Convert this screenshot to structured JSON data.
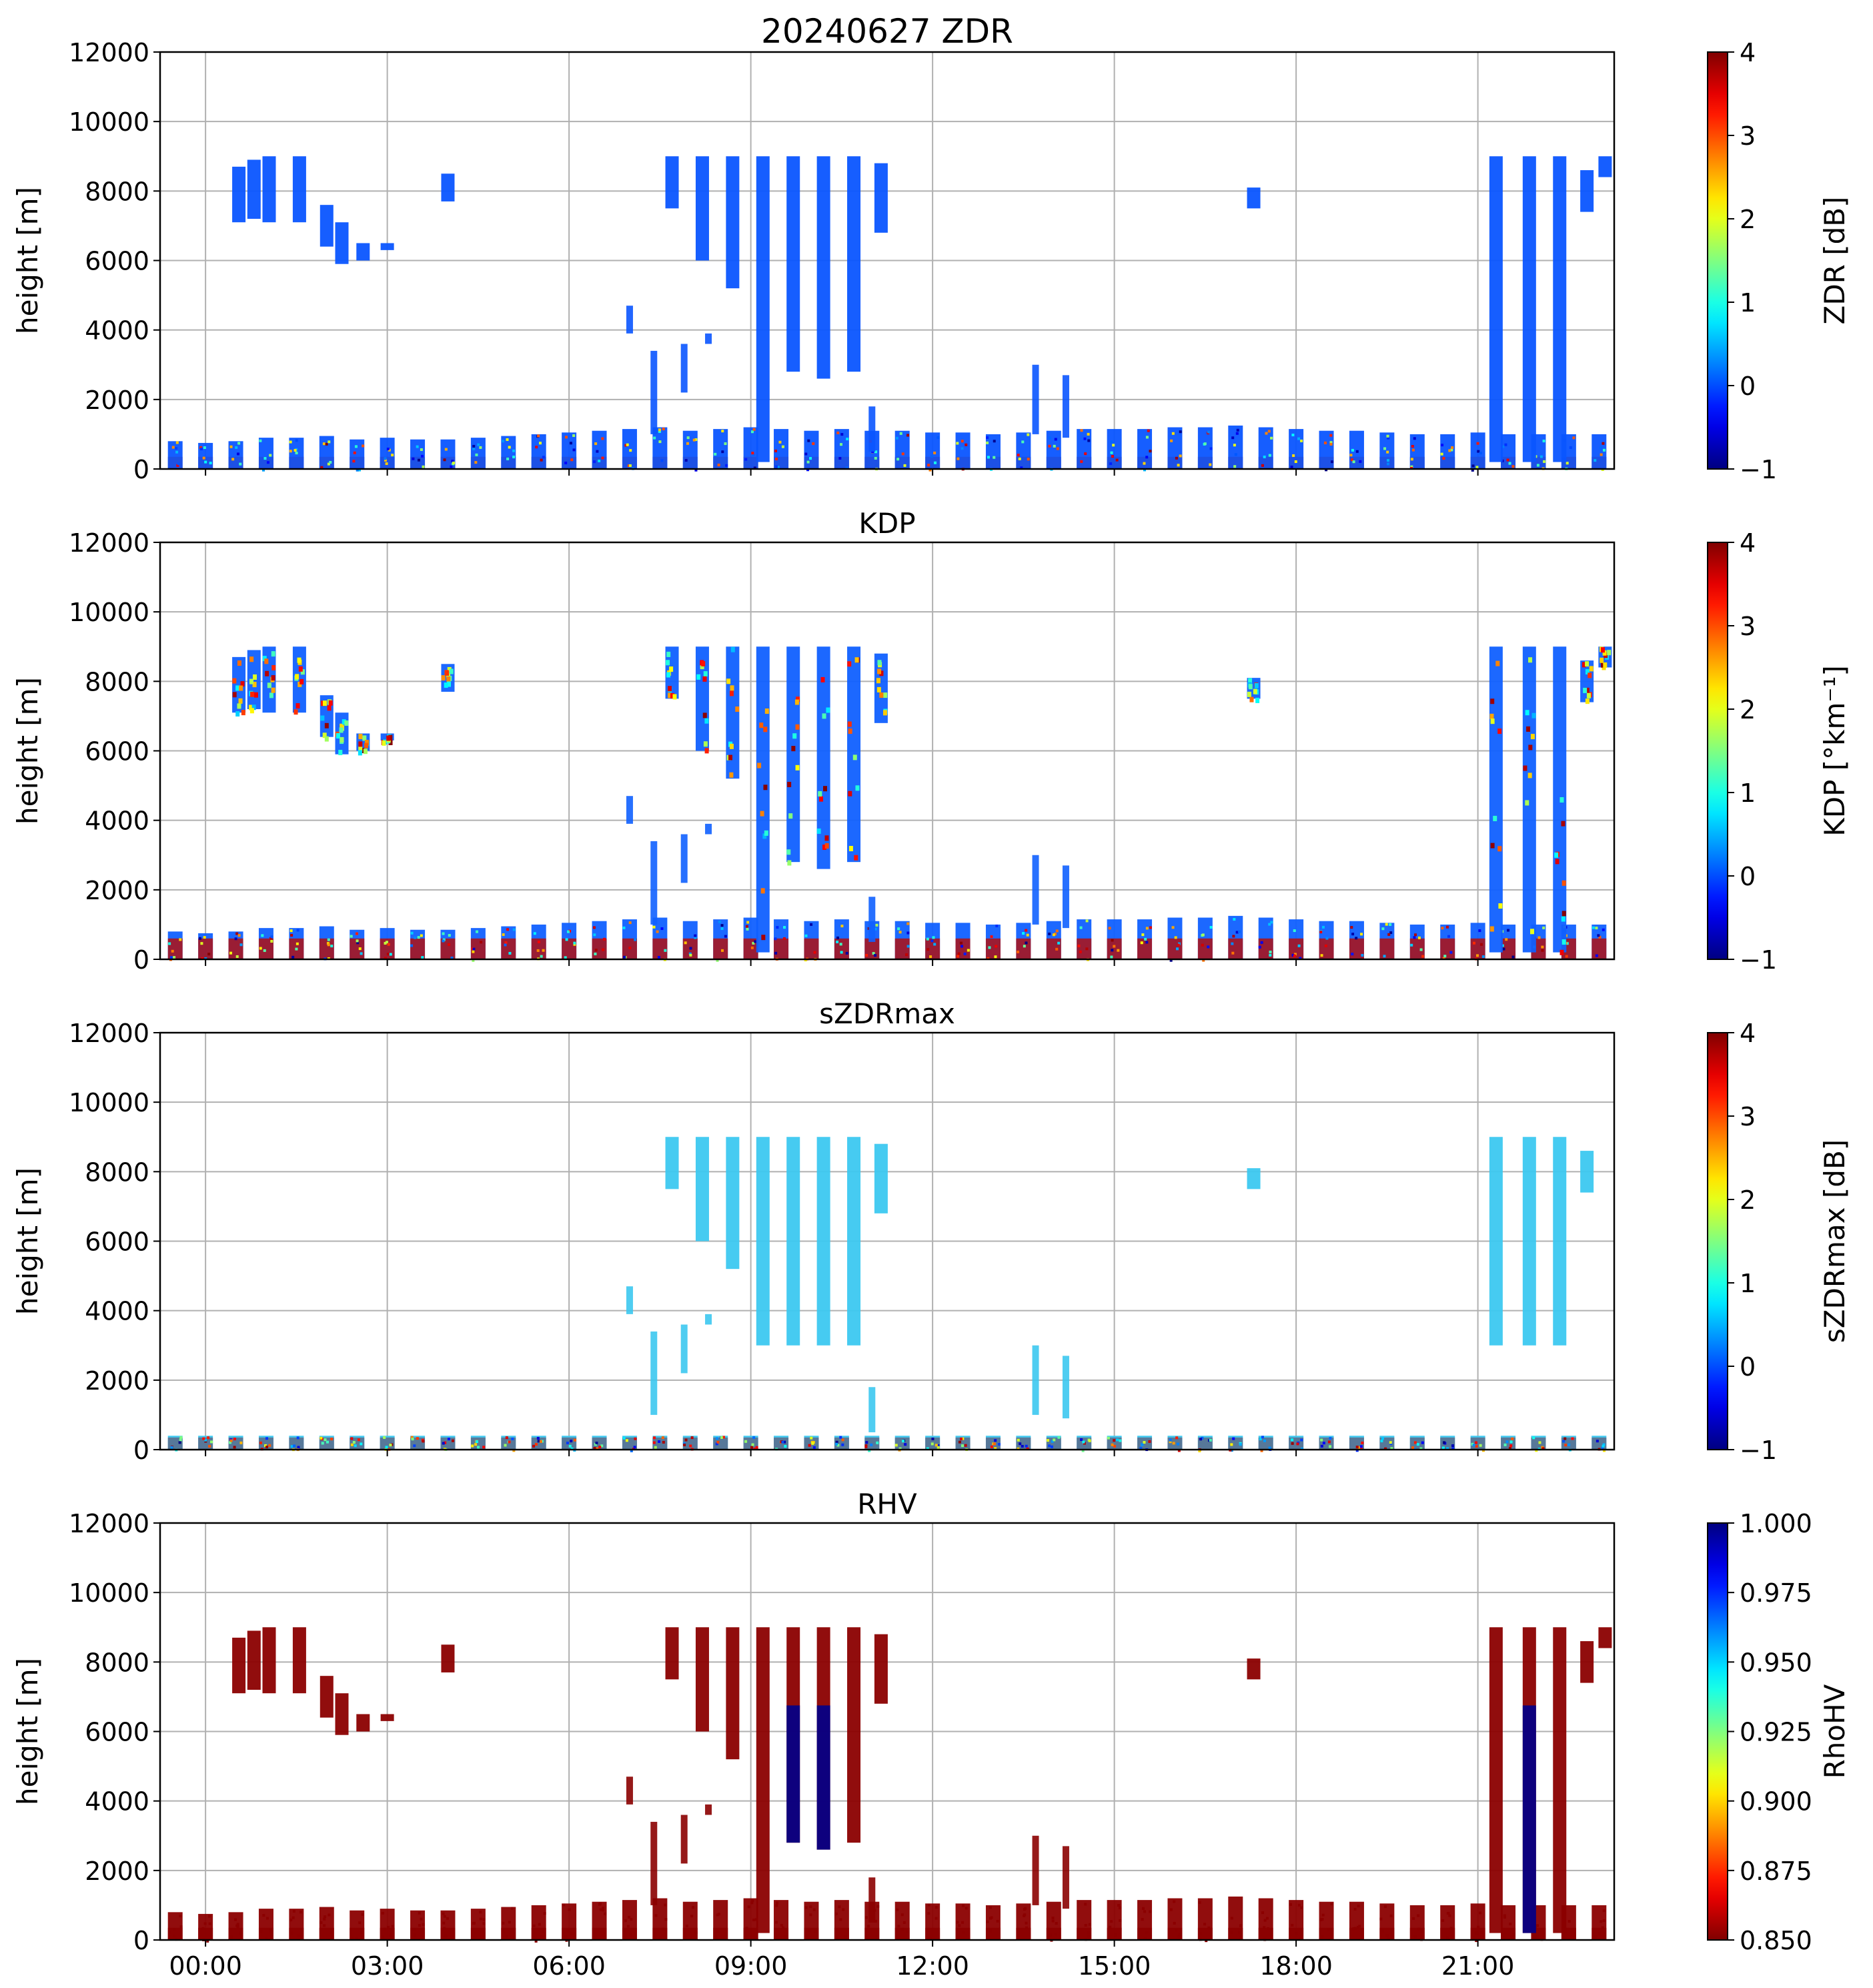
{
  "figure": {
    "title_main": "20240627 ZDR"
  },
  "x_ticks": [
    "00:00",
    "03:00",
    "06:00",
    "09:00",
    "12:00",
    "15:00",
    "18:00",
    "21:00"
  ],
  "chart_data": [
    {
      "type": "heatmap",
      "title": "20240627 ZDR",
      "ylabel": "height [m]",
      "ylim": [
        0,
        12000
      ],
      "yticks": [
        "0",
        "2000",
        "4000",
        "6000",
        "8000",
        "10000",
        "12000"
      ],
      "xlim_hours": [
        -0.75,
        23.25
      ],
      "grid": true,
      "colorbar": {
        "label": "ZDR [dB]",
        "range": [
          -1,
          4
        ],
        "ticks": [
          "−1",
          "0",
          "1",
          "2",
          "3",
          "4"
        ],
        "colormap": "jet",
        "reversed": false
      },
      "dominant_color": "#0a55ff",
      "low_level_color": "#1e4fe0"
    },
    {
      "type": "heatmap",
      "title": "KDP",
      "ylabel": "height [m]",
      "ylim": [
        0,
        12000
      ],
      "yticks": [
        "0",
        "2000",
        "4000",
        "6000",
        "8000",
        "10000",
        "12000"
      ],
      "xlim_hours": [
        -0.75,
        23.25
      ],
      "grid": true,
      "colorbar": {
        "label": "KDP [°km⁻¹]",
        "range": [
          -1,
          4
        ],
        "ticks": [
          "−1",
          "0",
          "1",
          "2",
          "3",
          "4"
        ],
        "colormap": "jet",
        "reversed": false
      },
      "dominant_color": "#1060ff",
      "low_level_color": "#b01010"
    },
    {
      "type": "heatmap",
      "title": "sZDRmax",
      "ylabel": "height [m]",
      "ylim": [
        0,
        12000
      ],
      "yticks": [
        "0",
        "2000",
        "4000",
        "6000",
        "8000",
        "10000",
        "12000"
      ],
      "xlim_hours": [
        -0.75,
        23.25
      ],
      "grid": true,
      "colorbar": {
        "label": "sZDRmax [dB]",
        "range": [
          -1,
          4
        ],
        "ticks": [
          "−1",
          "0",
          "1",
          "2",
          "3",
          "4"
        ],
        "colormap": "jet",
        "reversed": false
      },
      "dominant_color": "#3cc8f0",
      "low_level_color": "#5a6a8a"
    },
    {
      "type": "heatmap",
      "title": "RHV",
      "ylabel": "height [m]",
      "ylim": [
        0,
        12000
      ],
      "yticks": [
        "0",
        "2000",
        "4000",
        "6000",
        "8000",
        "10000",
        "12000"
      ],
      "xlim_hours": [
        -0.75,
        23.25
      ],
      "grid": true,
      "colorbar": {
        "label": "RhoHV",
        "range": [
          0.85,
          1.0
        ],
        "ticks": [
          "0.850",
          "0.875",
          "0.900",
          "0.925",
          "0.950",
          "0.975",
          "1.000"
        ],
        "colormap": "jet",
        "reversed": true
      },
      "dominant_color": "#8b0000",
      "low_level_color": "#8b0000"
    }
  ],
  "echo_data": {
    "description_units": "times in hours since 00:00, heights in m",
    "low_level_scans": [
      [
        -0.5,
        800
      ],
      [
        0,
        750
      ],
      [
        0.5,
        800
      ],
      [
        1,
        900
      ],
      [
        1.5,
        900
      ],
      [
        2,
        950
      ],
      [
        2.5,
        850
      ],
      [
        3,
        900
      ],
      [
        3.5,
        850
      ],
      [
        4,
        850
      ],
      [
        4.5,
        900
      ],
      [
        5,
        950
      ],
      [
        5.5,
        1000
      ],
      [
        6,
        1050
      ],
      [
        6.5,
        1100
      ],
      [
        7,
        1150
      ],
      [
        7.5,
        1200
      ],
      [
        8,
        1100
      ],
      [
        8.5,
        1150
      ],
      [
        9,
        1200
      ],
      [
        9.5,
        1150
      ],
      [
        10,
        1100
      ],
      [
        10.5,
        1150
      ],
      [
        11,
        1100
      ],
      [
        11.5,
        1100
      ],
      [
        12,
        1050
      ],
      [
        12.5,
        1050
      ],
      [
        13,
        1000
      ],
      [
        13.5,
        1050
      ],
      [
        14,
        1100
      ],
      [
        14.5,
        1150
      ],
      [
        15,
        1150
      ],
      [
        15.5,
        1150
      ],
      [
        16,
        1200
      ],
      [
        16.5,
        1200
      ],
      [
        17,
        1250
      ],
      [
        17.5,
        1200
      ],
      [
        18,
        1150
      ],
      [
        18.5,
        1100
      ],
      [
        19,
        1100
      ],
      [
        19.5,
        1050
      ],
      [
        20,
        1000
      ],
      [
        20.5,
        1000
      ],
      [
        21,
        1050
      ],
      [
        21.5,
        1000
      ],
      [
        22,
        1000
      ],
      [
        22.5,
        1000
      ],
      [
        23,
        1000
      ]
    ],
    "upper_cloud_columns": [
      [
        0.55,
        7100,
        8700
      ],
      [
        0.8,
        7200,
        8900
      ],
      [
        1.05,
        7100,
        9000
      ],
      [
        1.55,
        7100,
        9000
      ],
      [
        2.0,
        6400,
        7600
      ],
      [
        2.25,
        5900,
        7100
      ],
      [
        2.6,
        6000,
        6500
      ],
      [
        3.0,
        6300,
        6500
      ],
      [
        4.0,
        7700,
        8500
      ],
      [
        7.7,
        7500,
        9000
      ],
      [
        8.2,
        6000,
        9000
      ],
      [
        8.7,
        5200,
        9000
      ],
      [
        9.2,
        200,
        9000
      ],
      [
        9.7,
        2800,
        9000
      ],
      [
        10.2,
        2600,
        9000
      ],
      [
        10.7,
        2800,
        9000
      ],
      [
        11.15,
        6800,
        8800
      ],
      [
        17.3,
        7500,
        8100
      ],
      [
        21.3,
        200,
        9000
      ],
      [
        21.85,
        200,
        9000
      ],
      [
        22.35,
        200,
        9000
      ],
      [
        22.8,
        7400,
        8600
      ],
      [
        23.1,
        8400,
        9000
      ]
    ],
    "mid_level_fragments": [
      [
        7.0,
        3900,
        4700
      ],
      [
        7.4,
        1000,
        3400
      ],
      [
        7.9,
        2200,
        3600
      ],
      [
        8.3,
        3600,
        3900
      ],
      [
        11.0,
        500,
        1800
      ],
      [
        13.7,
        1000,
        3000
      ],
      [
        14.2,
        900,
        2700
      ]
    ]
  }
}
